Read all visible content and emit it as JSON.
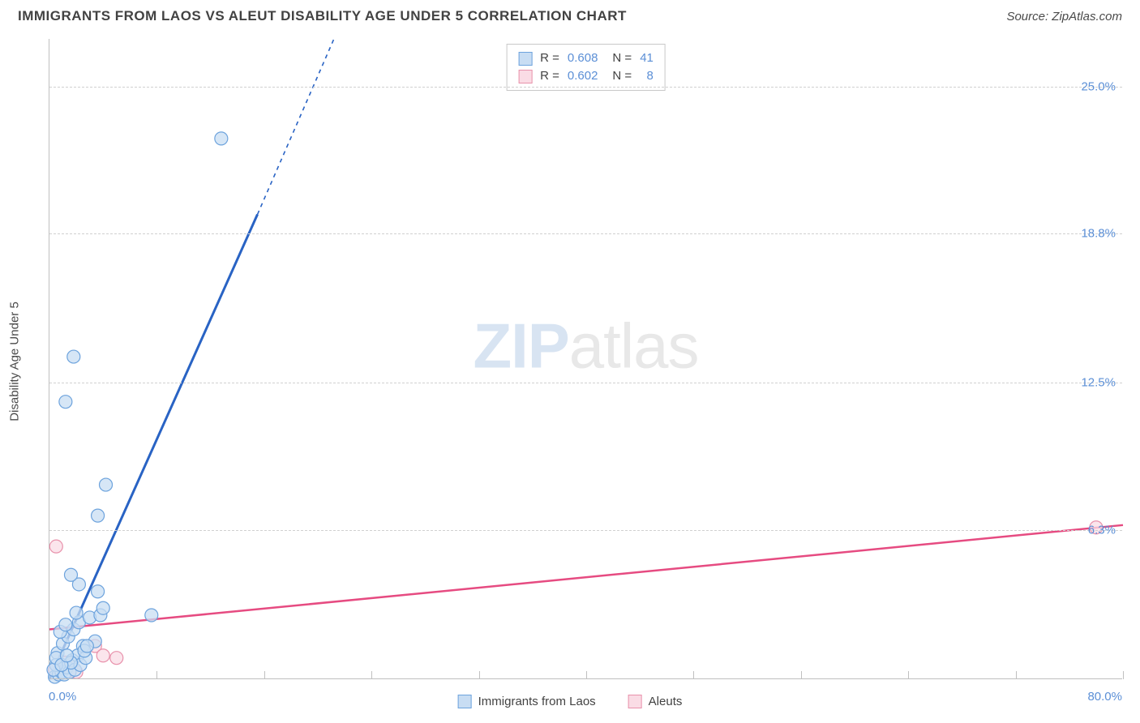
{
  "title": "IMMIGRANTS FROM LAOS VS ALEUT DISABILITY AGE UNDER 5 CORRELATION CHART",
  "source": "Source: ZipAtlas.com",
  "y_axis_label": "Disability Age Under 5",
  "watermark_zip": "ZIP",
  "watermark_rest": "atlas",
  "x_origin": "0.0%",
  "x_right": "80.0%",
  "legend_top": {
    "row1": {
      "r_label": "R =",
      "r_value": "0.608",
      "n_label": "N =",
      "n_value": "41"
    },
    "row2": {
      "r_label": "R =",
      "r_value": "0.602",
      "n_label": "N =",
      "n_value": "  8"
    }
  },
  "legend_bottom": {
    "series1": "Immigrants from Laos",
    "series2": "Aleuts"
  },
  "chart": {
    "type": "scatter",
    "xlim": [
      0,
      80
    ],
    "ylim": [
      0,
      27
    ],
    "y_ticks": [
      {
        "value": 6.3,
        "label": "6.3%"
      },
      {
        "value": 12.5,
        "label": "12.5%"
      },
      {
        "value": 18.8,
        "label": "18.8%"
      },
      {
        "value": 25.0,
        "label": "25.0%"
      }
    ],
    "x_ticks": [
      8,
      16,
      24,
      32,
      40,
      48,
      56,
      64,
      72,
      80
    ],
    "grid_color": "#d0d0d0",
    "background_color": "#ffffff",
    "axis_color": "#c0c0c0",
    "label_color": "#5b8fd6",
    "title_fontsize": 17,
    "label_fontsize": 15,
    "marker_radius": 8,
    "marker_stroke_width": 1.2,
    "series": {
      "blue": {
        "name": "Immigrants from Laos",
        "fill": "#c8ddf3",
        "stroke": "#6da3dd",
        "opacity": 0.75,
        "line_color": "#2963c4",
        "line_width": 3,
        "trend": {
          "x1": 0,
          "y1": 0,
          "x2": 15.5,
          "y2": 19.6,
          "x2_dash": 21.2,
          "y2_dash": 27
        },
        "points": [
          [
            0.4,
            0.1
          ],
          [
            0.7,
            0.2
          ],
          [
            0.9,
            0.3
          ],
          [
            1.1,
            0.2
          ],
          [
            1.3,
            0.5
          ],
          [
            1.5,
            0.3
          ],
          [
            1.7,
            0.8
          ],
          [
            1.9,
            0.4
          ],
          [
            2.1,
            1.0
          ],
          [
            2.3,
            0.6
          ],
          [
            2.5,
            1.4
          ],
          [
            2.7,
            0.9
          ],
          [
            0.6,
            1.1
          ],
          [
            1.0,
            1.5
          ],
          [
            1.4,
            1.8
          ],
          [
            1.8,
            2.1
          ],
          [
            2.2,
            2.4
          ],
          [
            2.6,
            1.2
          ],
          [
            3.0,
            2.6
          ],
          [
            3.4,
            1.6
          ],
          [
            0.8,
            2.0
          ],
          [
            1.2,
            2.3
          ],
          [
            3.8,
            2.7
          ],
          [
            7.6,
            2.7
          ],
          [
            0.5,
            0.6
          ],
          [
            1.6,
            0.7
          ],
          [
            2.8,
            1.4
          ],
          [
            4.0,
            3.0
          ],
          [
            3.6,
            6.9
          ],
          [
            4.2,
            8.2
          ],
          [
            2.2,
            4.0
          ],
          [
            1.6,
            4.4
          ],
          [
            1.8,
            13.6
          ],
          [
            1.2,
            11.7
          ],
          [
            12.8,
            22.8
          ],
          [
            0.3,
            0.4
          ],
          [
            0.5,
            0.9
          ],
          [
            0.9,
            0.6
          ],
          [
            1.3,
            1.0
          ],
          [
            2.0,
            2.8
          ],
          [
            3.6,
            3.7
          ]
        ]
      },
      "pink": {
        "name": "Aleuts",
        "fill": "#fadce5",
        "stroke": "#e891ab",
        "opacity": 0.75,
        "line_color": "#e64b81",
        "line_width": 2.5,
        "trend": {
          "x1": 0,
          "y1": 2.1,
          "x2": 80,
          "y2": 6.5
        },
        "points": [
          [
            0.5,
            5.6
          ],
          [
            0.4,
            0.4
          ],
          [
            3.4,
            1.4
          ],
          [
            4.0,
            1.0
          ],
          [
            5.0,
            0.9
          ],
          [
            2.0,
            0.3
          ],
          [
            1.2,
            0.7
          ],
          [
            78.0,
            6.4
          ]
        ]
      }
    }
  }
}
